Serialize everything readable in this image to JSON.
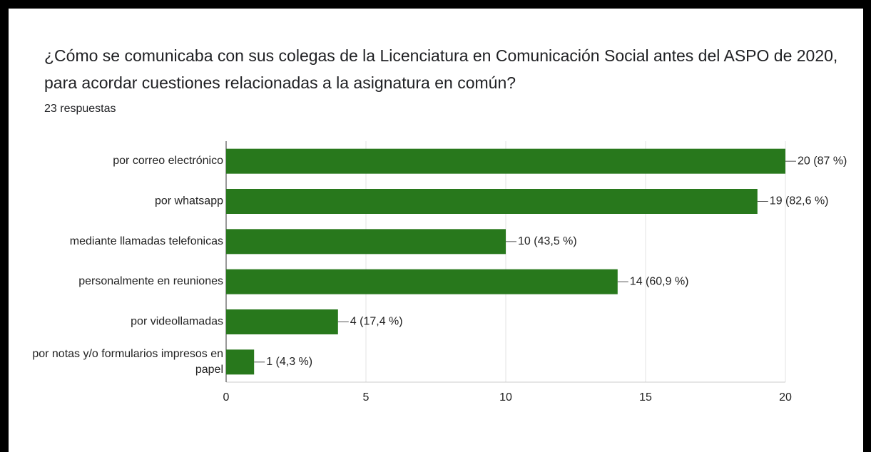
{
  "chart_data": {
    "type": "bar",
    "orientation": "horizontal",
    "title": "¿Cómo se comunicaba con sus colegas de la Licenciatura en Comunicación Social antes del ASPO de 2020, para acordar cuestiones relacionadas a la asignatura en común?",
    "subtitle": "23 respuestas",
    "categories": [
      "por correo electrónico",
      "por whatsapp",
      "mediante llamadas telefonicas",
      "personalmente en reuniones",
      "por videollamadas",
      "por notas y/o formularios impresos en papel"
    ],
    "values": [
      20,
      19,
      10,
      14,
      4,
      1
    ],
    "value_labels": [
      "20 (87 %)",
      "19 (82,6 %)",
      "10 (43,5 %)",
      "14 (60,9 %)",
      "4 (17,4 %)",
      "1 (4,3 %)"
    ],
    "color": "#28781c",
    "xlim": [
      0,
      20
    ],
    "xticks": [
      0,
      5,
      10,
      15,
      20
    ],
    "grid": true
  }
}
